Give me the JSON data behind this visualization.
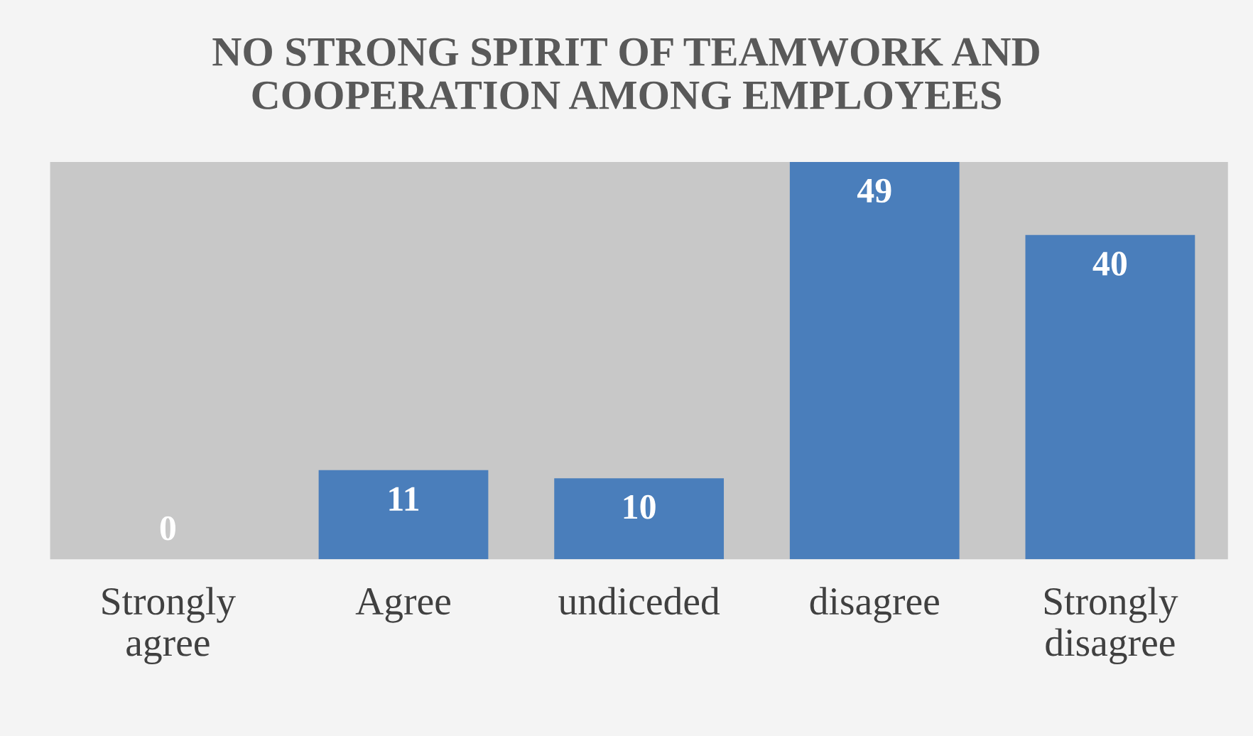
{
  "chart_data": {
    "type": "bar",
    "title": "NO STRONG SPIRIT OF TEAMWORK AND\nCOOPERATION AMONG EMPLOYEES",
    "categories": [
      "Strongly\nagree",
      "Agree",
      "undiceded",
      "disagree",
      "Strongly\ndisagree"
    ],
    "values": [
      0,
      11,
      10,
      49,
      40
    ],
    "color": "#4a7ebb",
    "data_labels": true,
    "grid": false,
    "legend": false
  }
}
